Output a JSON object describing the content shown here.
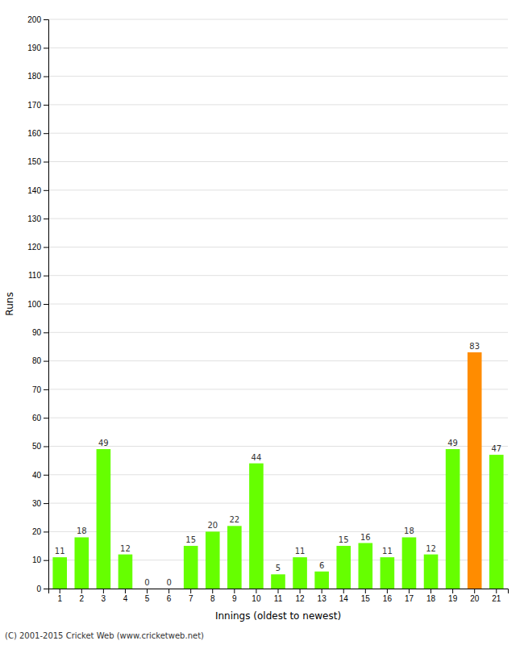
{
  "chart_data": {
    "type": "bar",
    "xlabel": "Innings (oldest to newest)",
    "ylabel": "Runs",
    "categories": [
      1,
      2,
      3,
      4,
      5,
      6,
      7,
      8,
      9,
      10,
      11,
      12,
      13,
      14,
      15,
      16,
      17,
      18,
      19,
      20,
      21
    ],
    "values": [
      11,
      18,
      49,
      12,
      0,
      0,
      15,
      20,
      22,
      44,
      5,
      11,
      6,
      15,
      16,
      11,
      18,
      12,
      49,
      83,
      47
    ],
    "colors": [
      "#66ff00",
      "#66ff00",
      "#66ff00",
      "#66ff00",
      "#66ff00",
      "#66ff00",
      "#66ff00",
      "#66ff00",
      "#66ff00",
      "#66ff00",
      "#66ff00",
      "#66ff00",
      "#66ff00",
      "#66ff00",
      "#66ff00",
      "#66ff00",
      "#66ff00",
      "#66ff00",
      "#66ff00",
      "#ff8c00",
      "#66ff00"
    ],
    "ylim": [
      0,
      200
    ],
    "yticks": [
      0,
      10,
      20,
      30,
      40,
      50,
      60,
      70,
      80,
      90,
      100,
      110,
      120,
      130,
      140,
      150,
      160,
      170,
      180,
      190,
      200
    ],
    "grid": true,
    "data_labels": true,
    "footer": "(C) 2001-2015 Cricket Web (www.cricketweb.net)"
  }
}
